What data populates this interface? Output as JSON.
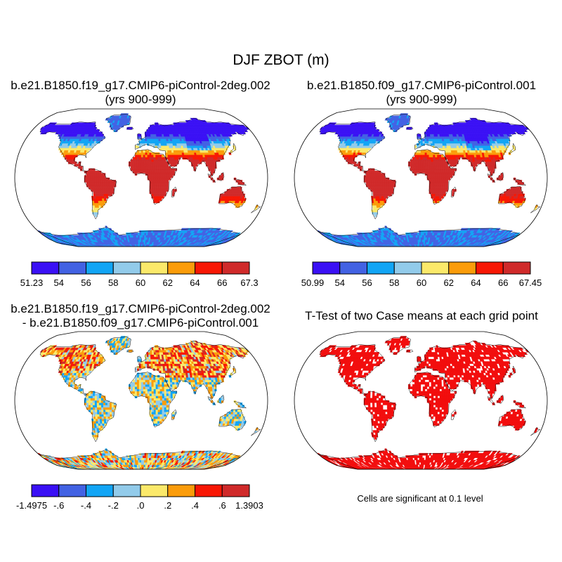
{
  "figure": {
    "title": "DJF ZBOT (m)"
  },
  "colors": {
    "palette": [
      "#3a10f5",
      "#4262e3",
      "#12a5f5",
      "#92cbea",
      "#fbe96a",
      "#fb9c0a",
      "#f81704",
      "#d02a2a"
    ],
    "significance": "#f20d0d",
    "coastline": "#000000",
    "ocean": "#ffffff"
  },
  "panels": [
    {
      "id": "case1",
      "title_lines": [
        "b.e21.B1850.f19_g17.CMIP6-piControl-2deg.002",
        "(yrs 900-999)"
      ],
      "colorbar": {
        "labels": [
          "51.23",
          "54",
          "56",
          "58",
          "60",
          "62",
          "64",
          "66",
          "67.3"
        ]
      }
    },
    {
      "id": "case2",
      "title_lines": [
        "b.e21.B1850.f09_g17.CMIP6-piControl.001",
        "(yrs 900-999)"
      ],
      "colorbar": {
        "labels": [
          "50.99",
          "54",
          "56",
          "58",
          "60",
          "62",
          "64",
          "66",
          "67.45"
        ]
      }
    },
    {
      "id": "difference",
      "title_lines": [
        "b.e21.B1850.f19_g17.CMIP6-piControl-2deg.002",
        "- b.e21.B1850.f09_g17.CMIP6-piControl.001"
      ],
      "colorbar": {
        "labels": [
          "-1.4975",
          "-.6",
          "-.4",
          "-.2",
          ".0",
          ".2",
          ".4",
          ".6",
          "1.3903"
        ]
      }
    },
    {
      "id": "ttest",
      "title_lines": [
        "T-Test of two Case means at each grid point"
      ],
      "note": "Cells are significant at 0.1 level"
    }
  ]
}
